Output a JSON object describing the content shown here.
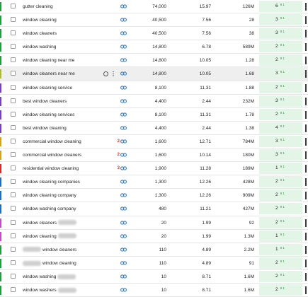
{
  "colors": {
    "kd_bg": "#e3f5e6",
    "link": "#3b7fc4",
    "serp": "#d9322b"
  },
  "rows": [
    {
      "kw": "gutter cleaning",
      "vol": "74,000",
      "cpc": "15.97",
      "res": "126M",
      "kd": "6",
      "kd_sub": "9 1",
      "bar": "#1f9e3a",
      "serp": "",
      "pre_blur": false,
      "post_blur": false
    },
    {
      "kw": "window cleaning",
      "vol": "40,500",
      "cpc": "7.56",
      "res": "28",
      "kd": "3",
      "kd_sub": "9 1",
      "bar": "#1f9e3a",
      "serp": "",
      "pre_blur": false,
      "post_blur": false
    },
    {
      "kw": "window cleaners",
      "vol": "40,500",
      "cpc": "7.56",
      "res": "38",
      "kd": "3",
      "kd_sub": "9 1",
      "bar": "#1f9e3a",
      "serp": "",
      "pre_blur": false,
      "post_blur": false
    },
    {
      "kw": "window washing",
      "vol": "14,800",
      "cpc": "6.78",
      "res": "589M",
      "kd": "2",
      "kd_sub": "9 1",
      "bar": "#1f9e3a",
      "serp": "",
      "pre_blur": false,
      "post_blur": false
    },
    {
      "kw": "window cleaning near me",
      "vol": "14,800",
      "cpc": "10.05",
      "res": "1.28",
      "kd": "2",
      "kd_sub": "9 1",
      "bar": "#1f9e3a",
      "serp": "",
      "pre_blur": false,
      "post_blur": false
    },
    {
      "kw": "window cleaners near me",
      "vol": "14,800",
      "cpc": "10.05",
      "res": "1.68",
      "kd": "3",
      "kd_sub": "9 1",
      "bar": "#b0b838",
      "serp": "",
      "pre_blur": false,
      "post_blur": false,
      "hover": true
    },
    {
      "kw": "window cleaning service",
      "vol": "8,100",
      "cpc": "11.31",
      "res": "1.88",
      "kd": "2",
      "kd_sub": "9 1",
      "bar": "#7a3fc0",
      "serp": "",
      "pre_blur": false,
      "post_blur": false
    },
    {
      "kw": "best window cleaners",
      "vol": "4,400",
      "cpc": "2.44",
      "res": "232M",
      "kd": "3",
      "kd_sub": "9 1",
      "bar": "#7a3fc0",
      "serp": "",
      "pre_blur": false,
      "post_blur": false
    },
    {
      "kw": "window cleaning services",
      "vol": "8,100",
      "cpc": "11.31",
      "res": "1.78",
      "kd": "2",
      "kd_sub": "9 1",
      "bar": "#7a3fc0",
      "serp": "",
      "pre_blur": false,
      "post_blur": false
    },
    {
      "kw": "best window cleaning",
      "vol": "4,400",
      "cpc": "2.44",
      "res": "1.38",
      "kd": "4",
      "kd_sub": "9 1",
      "bar": "#7a3fc0",
      "serp": "",
      "pre_blur": false,
      "post_blur": false
    },
    {
      "kw": "commercial window cleaning",
      "vol": "1,600",
      "cpc": "12.71",
      "res": "784M",
      "kd": "3",
      "kd_sub": "9 1",
      "bar": "#d6a21e",
      "serp": "2",
      "pre_blur": false,
      "post_blur": false
    },
    {
      "kw": "commercial window cleaners",
      "vol": "1,600",
      "cpc": "10.14",
      "res": "180M",
      "kd": "3",
      "kd_sub": "9 1",
      "bar": "#d6a21e",
      "serp": "2",
      "pre_blur": false,
      "post_blur": false
    },
    {
      "kw": "residential window cleaning",
      "vol": "1,900",
      "cpc": "11.28",
      "res": "189M",
      "kd": "1",
      "kd_sub": "9 1",
      "bar": "#d62b2b",
      "serp": "3",
      "pre_blur": false,
      "post_blur": false
    },
    {
      "kw": "window cleaning companies",
      "vol": "1,300",
      "cpc": "12.26",
      "res": "428M",
      "kd": "2",
      "kd_sub": "9 1",
      "bar": "#1f6fc0",
      "serp": "",
      "pre_blur": false,
      "post_blur": false
    },
    {
      "kw": "window cleaning company",
      "vol": "1,300",
      "cpc": "12.26",
      "res": "909M",
      "kd": "2",
      "kd_sub": "9 1",
      "bar": "#1f6fc0",
      "serp": "",
      "pre_blur": false,
      "post_blur": false
    },
    {
      "kw": "window washing company",
      "vol": "480",
      "cpc": "11.21",
      "res": "427M",
      "kd": "2",
      "kd_sub": "9 1",
      "bar": "#1f6fc0",
      "serp": "",
      "pre_blur": false,
      "post_blur": false
    },
    {
      "kw": "window cleaners",
      "vol": "20",
      "cpc": "1.99",
      "res": "92",
      "kd": "2",
      "kd_sub": "9 1",
      "bar": "#c64bc6",
      "serp": "",
      "pre_blur": false,
      "post_blur": true
    },
    {
      "kw": "window cleaning",
      "vol": "20",
      "cpc": "1.99",
      "res": "1.3M",
      "kd": "1",
      "kd_sub": "9 1",
      "bar": "#c64bc6",
      "serp": "",
      "pre_blur": false,
      "post_blur": true
    },
    {
      "kw": "window cleaners",
      "vol": "110",
      "cpc": "4.89",
      "res": "2.2M",
      "kd": "1",
      "kd_sub": "9 1",
      "bar": "#1f9e3a",
      "serp": "",
      "pre_blur": true,
      "post_blur": false
    },
    {
      "kw": "window cleaning",
      "vol": "110",
      "cpc": "4.89",
      "res": "91",
      "kd": "2",
      "kd_sub": "9 1",
      "bar": "#1f9e3a",
      "serp": "",
      "pre_blur": true,
      "post_blur": false
    },
    {
      "kw": "window washing",
      "vol": "10",
      "cpc": "8.71",
      "res": "1.6M",
      "kd": "2",
      "kd_sub": "9 1",
      "bar": "#1f9e3a",
      "serp": "",
      "pre_blur": false,
      "post_blur": true
    },
    {
      "kw": "window washers",
      "vol": "10",
      "cpc": "8.71",
      "res": "1.6M",
      "kd": "2",
      "kd_sub": "9 1",
      "bar": "#1f9e3a",
      "serp": "",
      "pre_blur": false,
      "post_blur": true
    }
  ]
}
